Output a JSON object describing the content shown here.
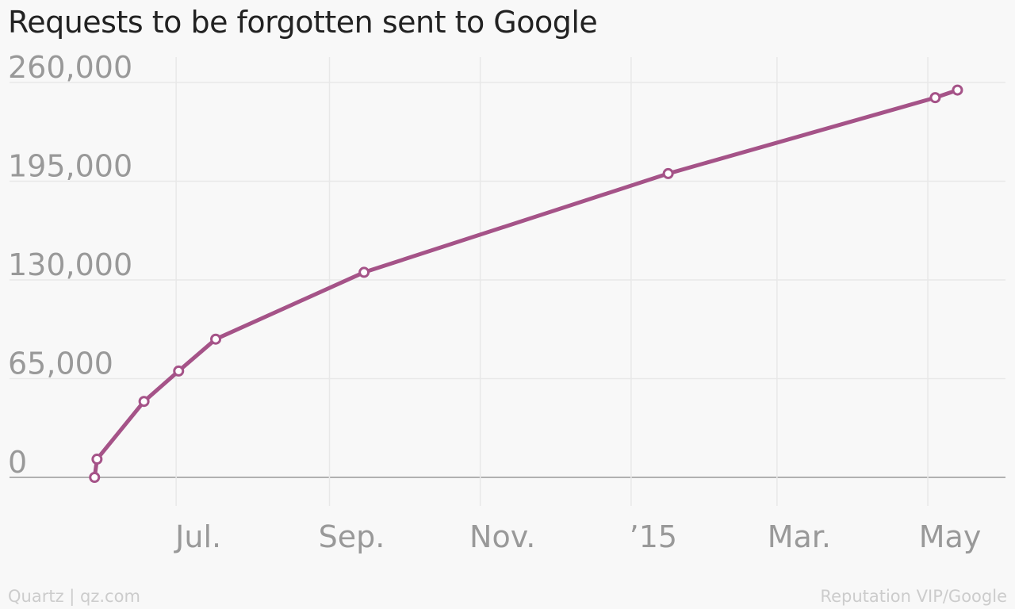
{
  "title": "Requests to be forgotten sent to Google",
  "footer": {
    "left": "Quartz | qz.com",
    "right": "Reputation VIP/Google"
  },
  "colors": {
    "line": "#a55388",
    "marker_fill": "#ffffff",
    "grid": "#e8e8e8",
    "axis": "#999999",
    "tick_label": "#999999",
    "background": "#f8f8f8"
  },
  "chart_data": {
    "type": "line",
    "title": "Requests to be forgotten sent to Google",
    "xlabel": "",
    "ylabel": "",
    "ylim": [
      0,
      260000
    ],
    "yticks": [
      0,
      65000,
      130000,
      195000,
      260000
    ],
    "ytick_labels": [
      "0",
      "65,000",
      "130,000",
      "195,000",
      "260,000"
    ],
    "xlim": [
      "2014-05-10",
      "2015-05-26"
    ],
    "xticks": [
      "2014-07-01",
      "2014-09-01",
      "2014-11-01",
      "2015-01-01",
      "2015-03-01",
      "2015-05-01"
    ],
    "xtick_labels": [
      "Jul.",
      "Sep.",
      "Nov.",
      "’15",
      "Mar.",
      "May"
    ],
    "grid": true,
    "series": [
      {
        "name": "",
        "x": [
          "2014-05-29",
          "2014-05-30",
          "2014-06-18",
          "2014-07-02",
          "2014-07-17",
          "2014-09-15",
          "2015-01-16",
          "2015-05-04",
          "2015-05-13"
        ],
        "values": [
          0,
          12000,
          50000,
          70000,
          91000,
          135000,
          200000,
          250000,
          255000
        ]
      }
    ]
  }
}
